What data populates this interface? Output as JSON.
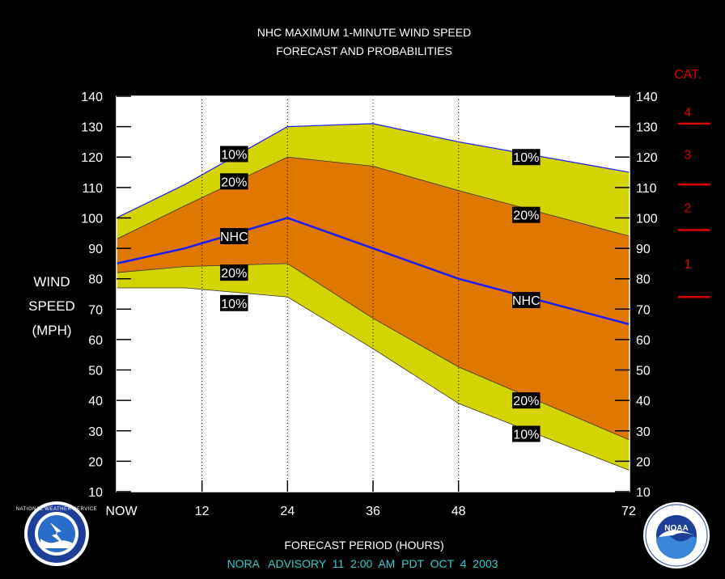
{
  "chart_data": {
    "type": "area",
    "title_line1": "NHC MAXIMUM 1-MINUTE WIND SPEED",
    "title_line2": "FORECAST AND PROBABILITIES",
    "ylabel_lines": [
      "WIND",
      "SPEED",
      "(MPH)"
    ],
    "xlabel": "FORECAST PERIOD (HOURS)",
    "advisory": "NORA   ADVISORY  11  2:00  AM  PDT  OCT  4  2003",
    "ylim": [
      10,
      140
    ],
    "yticks": [
      10,
      20,
      30,
      40,
      50,
      60,
      70,
      80,
      90,
      100,
      110,
      120,
      130,
      140
    ],
    "xlim": [
      0,
      72
    ],
    "xticks": [
      {
        "x": 0,
        "label": "NOW"
      },
      {
        "x": 12,
        "label": "12"
      },
      {
        "x": 24,
        "label": "24"
      },
      {
        "x": 36,
        "label": "36"
      },
      {
        "x": 48,
        "label": "48"
      },
      {
        "x": 72,
        "label": "72"
      }
    ],
    "x": [
      0,
      9.6,
      24,
      36,
      48,
      72
    ],
    "series": [
      {
        "name": "10%",
        "values": [
          100,
          111,
          130,
          131,
          125,
          115
        ]
      },
      {
        "name": "20%",
        "values": [
          93,
          104,
          120,
          117,
          109,
          94
        ]
      },
      {
        "name": "NHC",
        "values": [
          85,
          90,
          100,
          90,
          80,
          65
        ]
      },
      {
        "name": "20%",
        "values": [
          82,
          84,
          85,
          67,
          51,
          27
        ]
      },
      {
        "name": "10%",
        "values": [
          77,
          77,
          74,
          57,
          39,
          17
        ]
      }
    ],
    "series_labels": [
      {
        "text": "10%",
        "x": 16.5,
        "y": 121
      },
      {
        "text": "20%",
        "x": 16.5,
        "y": 112
      },
      {
        "text": "NHC",
        "x": 16.5,
        "y": 94
      },
      {
        "text": "20%",
        "x": 16.5,
        "y": 82
      },
      {
        "text": "10%",
        "x": 16.5,
        "y": 72
      },
      {
        "text": "10%",
        "x": 57.5,
        "y": 120
      },
      {
        "text": "20%",
        "x": 57.5,
        "y": 101
      },
      {
        "text": "NHC",
        "x": 57.5,
        "y": 73
      },
      {
        "text": "20%",
        "x": 57.5,
        "y": 40
      },
      {
        "text": "10%",
        "x": 57.5,
        "y": 29
      }
    ],
    "category_scale": {
      "title": "CAT.",
      "thresholds_mph": [
        74,
        96,
        111,
        131
      ],
      "labels": [
        {
          "text": "1",
          "y": 85
        },
        {
          "text": "2",
          "y": 103.5
        },
        {
          "text": "3",
          "y": 121
        },
        {
          "text": "4",
          "y": 135
        }
      ]
    },
    "colors": {
      "background": "#000000",
      "outer_band": "#d4d400",
      "inner_band": "#e07800",
      "nhc_line": "#1a1aff",
      "category": "#dd0000",
      "advisory_text": "#33cccc"
    },
    "grid": "dotted vertical lines at forecast hours"
  },
  "logos": {
    "left": "NATIONAL WEATHER SERVICE",
    "right": "NOAA"
  }
}
